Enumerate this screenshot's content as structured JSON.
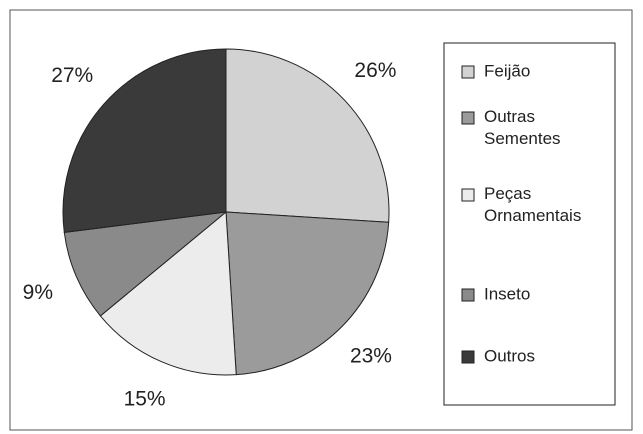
{
  "chart_data": {
    "type": "pie",
    "categories": [
      "Feijão",
      "Outras Sementes",
      "Peças Ornamentais",
      "Inseto",
      "Outros"
    ],
    "values": [
      26,
      23,
      15,
      9,
      27
    ],
    "value_labels": [
      "26%",
      "23%",
      "15%",
      "9%",
      "27%"
    ],
    "colors": [
      "#d2d2d2",
      "#9b9b9b",
      "#ececec",
      "#8a8a8a",
      "#3a3a3a"
    ],
    "legend": "right"
  }
}
